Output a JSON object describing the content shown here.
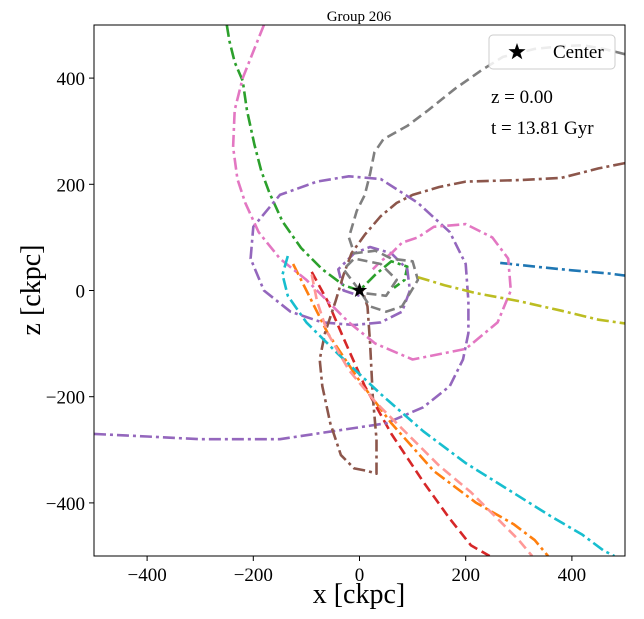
{
  "chart_data": {
    "type": "line",
    "title": "Group 206",
    "xlabel": "x [ckpc]",
    "ylabel": "z [ckpc]",
    "xlim": [
      -500,
      500
    ],
    "ylim": [
      -500,
      500
    ],
    "xticks": [
      -400,
      -200,
      0,
      200,
      400
    ],
    "yticks": [
      -400,
      -200,
      0,
      200,
      400
    ],
    "xtick_labels": [
      "−400",
      "−200",
      "0",
      "200",
      "400"
    ],
    "ytick_labels": [
      "−400",
      "−200",
      "0",
      "200",
      "400"
    ],
    "annotations": [
      "z = 0.00",
      "t = 13.81 Gyr"
    ],
    "legend": {
      "label": "Center",
      "marker": "star",
      "location": "upper right"
    },
    "center": {
      "x": 0,
      "z": 0
    },
    "series": [
      {
        "name": "blue",
        "color": "#1f77b4",
        "dash": "dashdot",
        "points": [
          [
            265,
            52
          ],
          [
            330,
            45
          ],
          [
            400,
            38
          ],
          [
            470,
            32
          ],
          [
            500,
            28
          ]
        ]
      },
      {
        "name": "orange",
        "color": "#ff7f0e",
        "dash": "dashdot",
        "points": [
          [
            -125,
            50
          ],
          [
            -95,
            -10
          ],
          [
            -60,
            -80
          ],
          [
            0,
            -170
          ],
          [
            60,
            -250
          ],
          [
            140,
            -340
          ],
          [
            220,
            -400
          ],
          [
            290,
            -440
          ],
          [
            330,
            -470
          ],
          [
            355,
            -500
          ]
        ]
      },
      {
        "name": "green",
        "color": "#2ca02c",
        "dash": "dashdot",
        "points": [
          [
            -250,
            500
          ],
          [
            -245,
            470
          ],
          [
            -235,
            430
          ],
          [
            -220,
            395
          ],
          [
            -212,
            340
          ],
          [
            -198,
            275
          ],
          [
            -185,
            225
          ],
          [
            -170,
            185
          ],
          [
            -145,
            130
          ],
          [
            -110,
            80
          ],
          [
            -70,
            40
          ],
          [
            -30,
            10
          ],
          [
            0,
            0
          ],
          [
            30,
            30
          ],
          [
            60,
            55
          ],
          [
            90,
            45
          ],
          [
            85,
            20
          ],
          [
            65,
            5
          ]
        ]
      },
      {
        "name": "red",
        "color": "#d62728",
        "dash": "dashed",
        "points": [
          [
            -90,
            35
          ],
          [
            -60,
            -20
          ],
          [
            -30,
            -90
          ],
          [
            10,
            -180
          ],
          [
            60,
            -270
          ],
          [
            120,
            -360
          ],
          [
            170,
            -430
          ],
          [
            210,
            -480
          ],
          [
            245,
            -500
          ]
        ]
      },
      {
        "name": "purple",
        "color": "#9467bd",
        "dash": "dashdot",
        "points": [
          [
            -500,
            -270
          ],
          [
            -400,
            -275
          ],
          [
            -300,
            -280
          ],
          [
            -200,
            -280
          ],
          [
            -150,
            -280
          ],
          [
            -50,
            -265
          ],
          [
            50,
            -250
          ],
          [
            120,
            -220
          ],
          [
            170,
            -180
          ],
          [
            195,
            -130
          ],
          [
            205,
            -80
          ],
          [
            205,
            -20
          ],
          [
            200,
            50
          ],
          [
            170,
            110
          ],
          [
            110,
            165
          ],
          [
            40,
            210
          ],
          [
            -20,
            215
          ],
          [
            -80,
            205
          ],
          [
            -150,
            180
          ],
          [
            -200,
            120
          ],
          [
            -205,
            60
          ],
          [
            -180,
            0
          ],
          [
            -130,
            -40
          ],
          [
            -70,
            -60
          ],
          [
            -10,
            -65
          ],
          [
            40,
            -60
          ],
          [
            80,
            -40
          ],
          [
            95,
            0
          ],
          [
            90,
            40
          ],
          [
            60,
            70
          ],
          [
            20,
            82
          ],
          [
            -10,
            70
          ],
          [
            -40,
            40
          ],
          [
            -30,
            0
          ],
          [
            0,
            -10
          ]
        ]
      },
      {
        "name": "brown",
        "color": "#8c564b",
        "dash": "dashdot",
        "points": [
          [
            500,
            240
          ],
          [
            450,
            230
          ],
          [
            380,
            212
          ],
          [
            300,
            208
          ],
          [
            200,
            205
          ],
          [
            150,
            195
          ],
          [
            100,
            180
          ],
          [
            70,
            165
          ],
          [
            40,
            140
          ],
          [
            10,
            105
          ],
          [
            -15,
            70
          ],
          [
            -30,
            30
          ],
          [
            -45,
            -20
          ],
          [
            -65,
            -80
          ],
          [
            -75,
            -130
          ],
          [
            -70,
            -180
          ],
          [
            -55,
            -250
          ],
          [
            -35,
            -310
          ],
          [
            -10,
            -335
          ],
          [
            15,
            -340
          ],
          [
            32,
            -345
          ],
          [
            32,
            -280
          ],
          [
            25,
            -200
          ],
          [
            20,
            -100
          ],
          [
            15,
            -30
          ],
          [
            5,
            0
          ]
        ]
      },
      {
        "name": "pink",
        "color": "#e377c2",
        "dash": "dashdot",
        "points": [
          [
            -180,
            500
          ],
          [
            -200,
            450
          ],
          [
            -220,
            400
          ],
          [
            -235,
            340
          ],
          [
            -238,
            270
          ],
          [
            -230,
            210
          ],
          [
            -215,
            165
          ],
          [
            -190,
            110
          ],
          [
            -150,
            60
          ],
          [
            -100,
            20
          ],
          [
            -60,
            -20
          ],
          [
            -20,
            -60
          ],
          [
            30,
            -100
          ],
          [
            100,
            -130
          ],
          [
            200,
            -110
          ],
          [
            260,
            -60
          ],
          [
            285,
            0
          ],
          [
            280,
            60
          ],
          [
            250,
            100
          ],
          [
            200,
            125
          ],
          [
            140,
            120
          ],
          [
            110,
            100
          ],
          [
            80,
            90
          ],
          [
            60,
            70
          ],
          [
            40,
            55
          ],
          [
            25,
            40
          ]
        ]
      },
      {
        "name": "gray",
        "color": "#7f7f7f",
        "dash": "dashed",
        "points": [
          [
            500,
            445
          ],
          [
            460,
            455
          ],
          [
            420,
            462
          ],
          [
            380,
            460
          ],
          [
            330,
            455
          ],
          [
            270,
            440
          ],
          [
            230,
            415
          ],
          [
            180,
            380
          ],
          [
            130,
            340
          ],
          [
            90,
            310
          ],
          [
            45,
            285
          ],
          [
            28,
            260
          ],
          [
            20,
            220
          ],
          [
            10,
            180
          ],
          [
            -5,
            150
          ],
          [
            -20,
            100
          ],
          [
            -10,
            70
          ],
          [
            30,
            75
          ],
          [
            60,
            60
          ],
          [
            100,
            55
          ],
          [
            110,
            20
          ],
          [
            80,
            -30
          ],
          [
            50,
            -40
          ],
          [
            20,
            -30
          ],
          [
            0,
            0
          ],
          [
            -30,
            40
          ],
          [
            -10,
            60
          ],
          [
            40,
            50
          ],
          [
            70,
            20
          ],
          [
            50,
            -10
          ],
          [
            10,
            -5
          ]
        ]
      },
      {
        "name": "olive",
        "color": "#bcbd22",
        "dash": "dashdot",
        "points": [
          [
            110,
            25
          ],
          [
            160,
            10
          ],
          [
            220,
            -5
          ],
          [
            300,
            -20
          ],
          [
            380,
            -38
          ],
          [
            450,
            -55
          ],
          [
            500,
            -62
          ]
        ]
      },
      {
        "name": "cyan",
        "color": "#17becf",
        "dash": "dashdot",
        "points": [
          [
            -135,
            65
          ],
          [
            -145,
            30
          ],
          [
            -135,
            -10
          ],
          [
            -100,
            -60
          ],
          [
            -40,
            -120
          ],
          [
            40,
            -195
          ],
          [
            120,
            -265
          ],
          [
            200,
            -325
          ],
          [
            280,
            -375
          ],
          [
            360,
            -425
          ],
          [
            420,
            -460
          ],
          [
            460,
            -490
          ],
          [
            480,
            -500
          ]
        ]
      },
      {
        "name": "salmon",
        "color": "#ff9896",
        "dash": "dashed",
        "points": [
          [
            -90,
            30
          ],
          [
            -80,
            -20
          ],
          [
            -60,
            -80
          ],
          [
            -20,
            -150
          ],
          [
            30,
            -210
          ],
          [
            90,
            -270
          ],
          [
            150,
            -330
          ],
          [
            210,
            -380
          ],
          [
            260,
            -430
          ],
          [
            300,
            -470
          ],
          [
            325,
            -500
          ]
        ]
      }
    ]
  }
}
